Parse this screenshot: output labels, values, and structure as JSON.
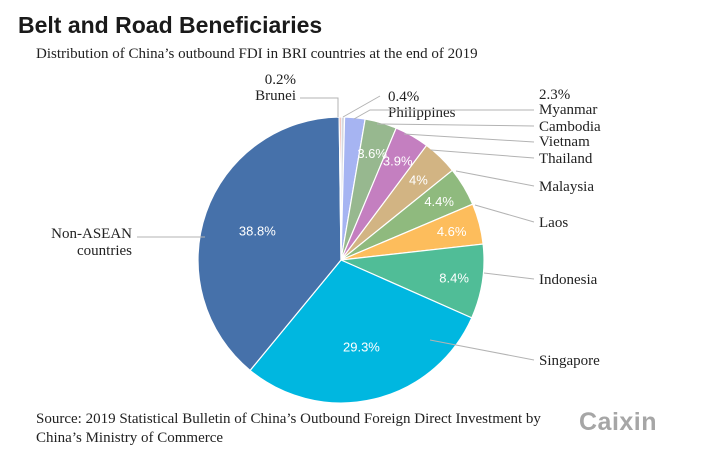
{
  "header": {
    "title": "Belt and Road Beneficiaries",
    "subtitle": "Distribution of China’s outbound FDI in BRI countries at the end of 2019"
  },
  "footer": {
    "source": "Source: 2019 Statistical Bulletin of China’s Outbound Foreign Direct Investment by China’s Ministry of Commerce",
    "logo": "Caixin"
  },
  "chart_data": {
    "type": "pie",
    "title": "Belt and Road Beneficiaries",
    "subtitle": "Distribution of China’s outbound FDI in BRI countries at the end of 2019",
    "unit": "%",
    "slices": [
      {
        "label": "Philippines",
        "value": 0.4,
        "display": "0.4%",
        "color": "#d6d9e0"
      },
      {
        "label": "Myanmar",
        "value": 2.3,
        "display": "2.3%",
        "color": "#a6b4f2"
      },
      {
        "label": "Cambodia",
        "value": 3.6,
        "display": "3.6%",
        "color": "#97b88f"
      },
      {
        "label": "Vietnam",
        "value": 3.9,
        "display": "3.9%",
        "color": "#c47fc0"
      },
      {
        "label": "Thailand",
        "value": 4.0,
        "display": "4%",
        "color": "#d2b483"
      },
      {
        "label": "Malaysia",
        "value": 4.4,
        "display": "4.4%",
        "color": "#8fba7e"
      },
      {
        "label": "Laos",
        "value": 4.6,
        "display": "4.6%",
        "color": "#fdbd5c"
      },
      {
        "label": "Indonesia",
        "value": 8.4,
        "display": "8.4%",
        "color": "#50bd97"
      },
      {
        "label": "Singapore",
        "value": 29.3,
        "display": "29.3%",
        "color": "#00b7e0"
      },
      {
        "label": "Non-ASEAN countries",
        "value": 38.8,
        "display": "38.8%",
        "color": "#4671aa"
      },
      {
        "label": "Brunei",
        "value": 0.2,
        "display": "0.2%",
        "color": "#e07560"
      }
    ]
  }
}
